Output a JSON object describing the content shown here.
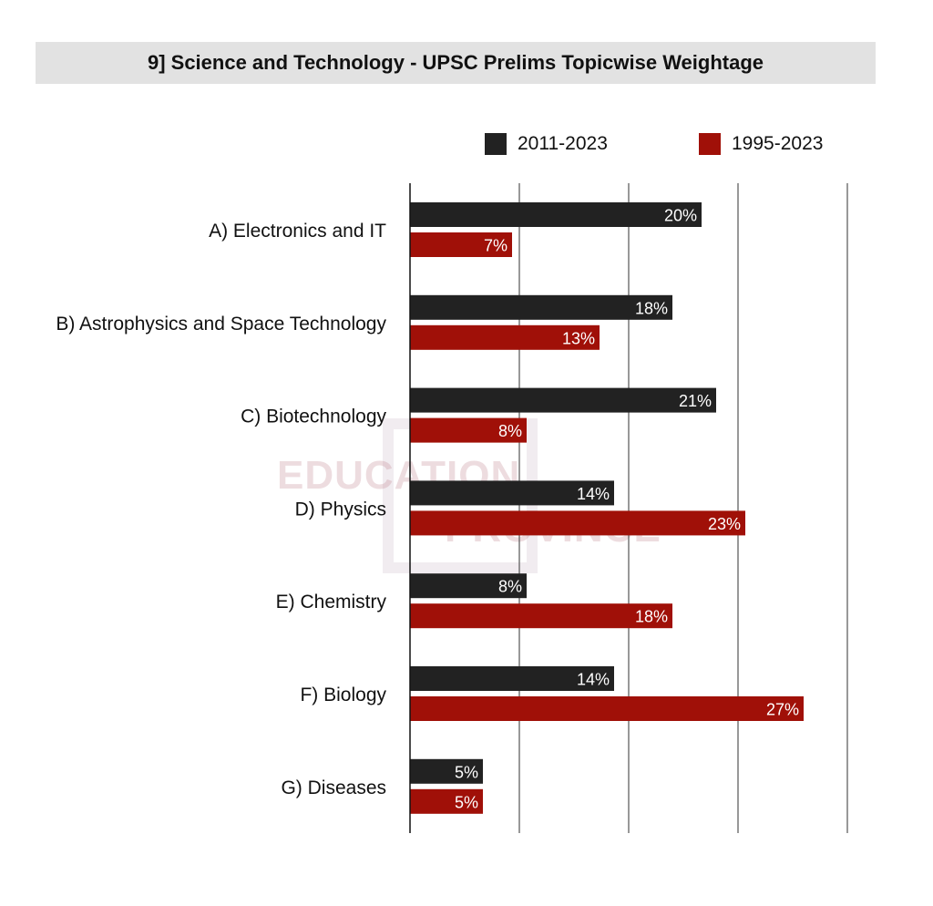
{
  "title": "9] Science and Technology - UPSC Prelims Topicwise Weightage",
  "watermark": {
    "line1": "EDUCATION",
    "line2": "PROVINCE"
  },
  "colors": {
    "series_2011_2023": "#222222",
    "series_1995_2023": "#a01008",
    "grid": "#555555",
    "title_bg": "#e2e2e2"
  },
  "chart_data": {
    "type": "bar",
    "orientation": "horizontal",
    "title": "9] Science and Technology - UPSC Prelims Topicwise Weightage",
    "categories": [
      "A) Electronics and IT",
      "B) Astrophysics and Space Technology",
      "C) Biotechnology",
      "D) Physics",
      "E) Chemistry",
      "F) Biology",
      "G) Diseases"
    ],
    "series": [
      {
        "name": "2011-2023",
        "color": "#222222",
        "values": [
          20,
          18,
          21,
          14,
          8,
          14,
          5
        ],
        "labels": [
          "20%",
          "18%",
          "21%",
          "14%",
          "8%",
          "14%",
          "5%"
        ]
      },
      {
        "name": "1995-2023",
        "color": "#a01008",
        "values": [
          7,
          13,
          8,
          23,
          18,
          27,
          5
        ],
        "labels": [
          "7%",
          "13%",
          "8%",
          "23%",
          "18%",
          "27%",
          "5%"
        ]
      }
    ],
    "xlim": [
      0,
      30
    ],
    "grid": true,
    "legend_position": "top-right",
    "xlabel": "",
    "ylabel": ""
  }
}
